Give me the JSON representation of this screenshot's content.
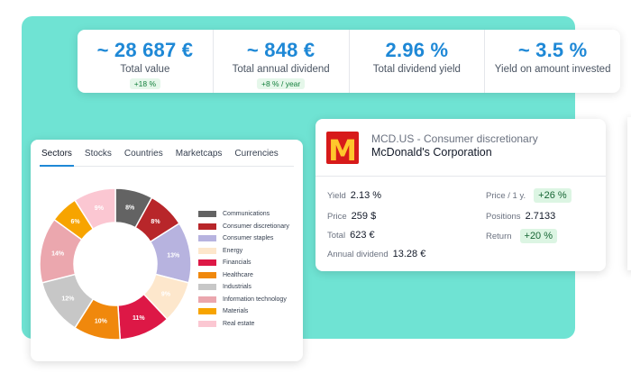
{
  "stats": [
    {
      "value": "~ 28 687 €",
      "label": "Total value",
      "badge": "+18 %"
    },
    {
      "value": "~ 848 €",
      "label": "Total annual dividend",
      "badge": "+8 % / year"
    },
    {
      "value": "2.96 %",
      "label": "Total dividend yield",
      "badge": ""
    },
    {
      "value": "~ 3.5 %",
      "label": "Yield on amount invested",
      "badge": ""
    }
  ],
  "tabs": [
    "Sectors",
    "Stocks",
    "Countries",
    "Marketcaps",
    "Currencies"
  ],
  "active_tab": "Sectors",
  "chart_data": {
    "type": "pie",
    "categories": [
      "Communications",
      "Consumer discretionary",
      "Consumer staples",
      "Energy",
      "Financials",
      "Healthcare",
      "Industrials",
      "Information technology",
      "Materials",
      "Real estate"
    ],
    "values": [
      8,
      8,
      13,
      9,
      11,
      10,
      12,
      14,
      6,
      9
    ],
    "labels": [
      "8%",
      "8%",
      "13%",
      "9%",
      "11%",
      "10%",
      "12%",
      "14%",
      "6%",
      "9%"
    ],
    "colors": [
      "#636363",
      "#b8262a",
      "#b7b3df",
      "#fde7cc",
      "#dd1846",
      "#f0880c",
      "#c7c7c7",
      "#eba7ae",
      "#f7a400",
      "#fbc7d2"
    ],
    "legend_position": "right",
    "donut": true
  },
  "stock": {
    "logo_letter": "M",
    "ticker_sector": "MCD.US - Consumer discretionary",
    "name": "McDonald's Corporation",
    "yield_label": "Yield",
    "yield_value": "2.13 %",
    "price_label": "Price",
    "price_value": "259 $",
    "total_label": "Total",
    "total_value": "623 €",
    "annual_div_label": "Annual dividend",
    "annual_div_value": "13.28 €",
    "price_1y_label": "Price / 1 y.",
    "price_1y_value": "+26 %",
    "positions_label": "Positions",
    "positions_value": "2.7133",
    "return_label": "Return",
    "return_value": "+20 %"
  }
}
